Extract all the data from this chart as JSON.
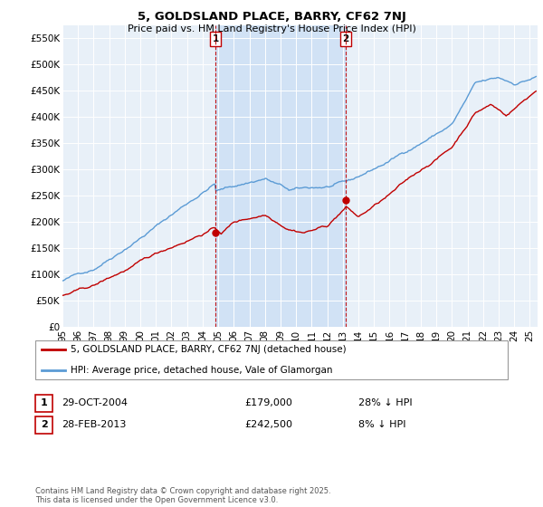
{
  "title": "5, GOLDSLAND PLACE, BARRY, CF62 7NJ",
  "subtitle": "Price paid vs. HM Land Registry's House Price Index (HPI)",
  "ylim": [
    0,
    575000
  ],
  "xlim_start": 1995.0,
  "xlim_end": 2025.5,
  "hpi_color": "#5b9bd5",
  "price_color": "#c00000",
  "background_color": "#e8f0f8",
  "fill_color": "#ccdff5",
  "transactions": [
    {
      "date": 2004.83,
      "price": 179000,
      "label": "1"
    },
    {
      "date": 2013.17,
      "price": 242500,
      "label": "2"
    }
  ],
  "legend_entries": [
    {
      "label": "5, GOLDSLAND PLACE, BARRY, CF62 7NJ (detached house)",
      "color": "#c00000"
    },
    {
      "label": "HPI: Average price, detached house, Vale of Glamorgan",
      "color": "#5b9bd5"
    }
  ],
  "table_entries": [
    {
      "num": "1",
      "date": "29-OCT-2004",
      "price": "£179,000",
      "hpi": "28% ↓ HPI"
    },
    {
      "num": "2",
      "date": "28-FEB-2013",
      "price": "£242,500",
      "hpi": "8% ↓ HPI"
    }
  ],
  "footer": "Contains HM Land Registry data © Crown copyright and database right 2025.\nThis data is licensed under the Open Government Licence v3.0.",
  "yticks": [
    0,
    50000,
    100000,
    150000,
    200000,
    250000,
    300000,
    350000,
    400000,
    450000,
    500000,
    550000
  ],
  "ytick_labels": [
    "£0",
    "£50K",
    "£100K",
    "£150K",
    "£200K",
    "£250K",
    "£300K",
    "£350K",
    "£400K",
    "£450K",
    "£500K",
    "£550K"
  ]
}
